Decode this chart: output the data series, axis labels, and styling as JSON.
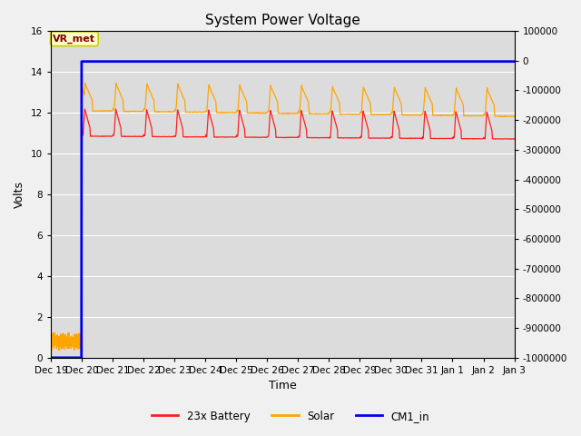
{
  "title": "System Power Voltage",
  "xlabel": "Time",
  "ylabel": "Volts",
  "xlim": [
    0,
    15
  ],
  "ylim_left": [
    0,
    16
  ],
  "ylim_right": [
    -1000000,
    100000
  ],
  "yticks_left": [
    0,
    2,
    4,
    6,
    8,
    10,
    12,
    14,
    16
  ],
  "yticks_right": [
    -1000000,
    -900000,
    -800000,
    -700000,
    -600000,
    -500000,
    -400000,
    -300000,
    -200000,
    -100000,
    0,
    100000
  ],
  "xtick_labels": [
    "Dec 19",
    "Dec 20",
    "Dec 21",
    "Dec 22",
    "Dec 23",
    "Dec 24",
    "Dec 25",
    "Dec 26",
    "Dec 27",
    "Dec 28",
    "Dec 29",
    "Dec 30",
    "Dec 31",
    "Jan 1",
    "Jan 2",
    "Jan 3"
  ],
  "fig_bg_color": "#f0f0f0",
  "plot_bg_color": "#dcdcdc",
  "grid_color": "#ffffff",
  "annotation_text": "VR_met",
  "annotation_box_facecolor": "#ffffcc",
  "annotation_box_edgecolor": "#cccc00",
  "annotation_text_color": "#800000",
  "colors": {
    "battery": "#ff2020",
    "solar": "#ffa500",
    "cm1": "#0000ee"
  },
  "legend_labels": [
    "23x Battery",
    "Solar",
    "CM1_in"
  ],
  "figsize": [
    6.4,
    4.8
  ],
  "dpi": 100
}
